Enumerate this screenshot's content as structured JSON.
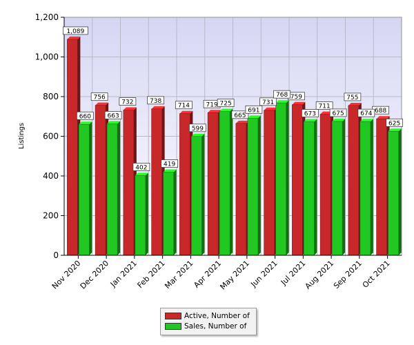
{
  "chart_data": {
    "type": "bar",
    "title": "",
    "xlabel": "",
    "ylabel": "Listings",
    "ylim": [
      0,
      1200
    ],
    "yticks": [
      0,
      200,
      400,
      600,
      800,
      1000,
      1200
    ],
    "ytick_labels": [
      "0",
      "200",
      "400",
      "600",
      "800",
      "1,000",
      "1,200"
    ],
    "grid": true,
    "legend_position": "bottom",
    "categories": [
      "Nov 2020",
      "Dec 2020",
      "Jan 2021",
      "Feb 2021",
      "Mar 2021",
      "Apr 2021",
      "May 2021",
      "Jun 2021",
      "Jul 2021",
      "Aug 2021",
      "Sep 2021",
      "Oct 2021"
    ],
    "series": [
      {
        "name": "Active, Number of",
        "color": "#c8282a",
        "values": [
          1089,
          756,
          732,
          738,
          714,
          719,
          665,
          731,
          759,
          711,
          755,
          688
        ],
        "labels": [
          "1,089",
          "756",
          "732",
          "738",
          "714",
          "719",
          "665",
          "731",
          "759",
          "711",
          "755",
          "688"
        ]
      },
      {
        "name": "Sales, Number of",
        "color": "#22c822",
        "values": [
          660,
          663,
          402,
          419,
          599,
          725,
          691,
          768,
          673,
          675,
          674,
          625
        ],
        "labels": [
          "660",
          "663",
          "402",
          "419",
          "599",
          "725",
          "691",
          "768",
          "673",
          "675",
          "674",
          "625"
        ]
      }
    ]
  },
  "legend": {
    "items": [
      {
        "label": "Active, Number of",
        "color": "#c8282a"
      },
      {
        "label": "Sales, Number of",
        "color": "#22c822"
      }
    ]
  }
}
